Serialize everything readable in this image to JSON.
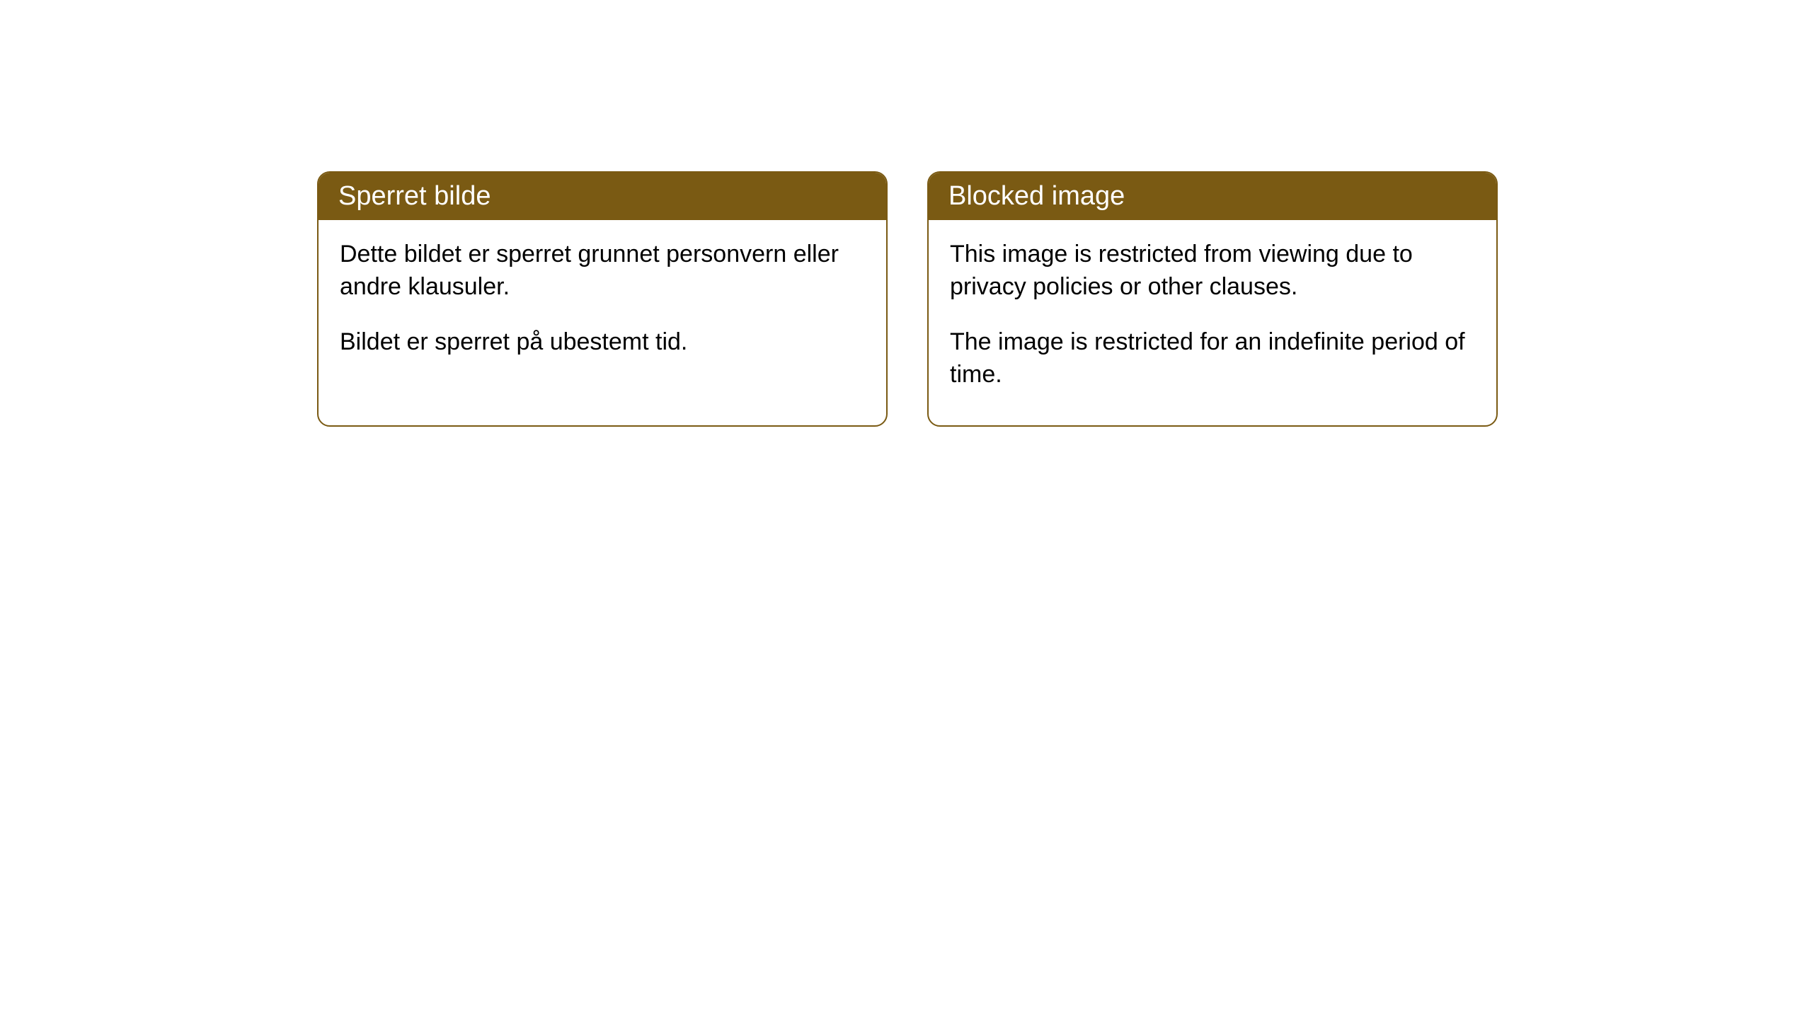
{
  "cards": [
    {
      "title": "Sperret bilde",
      "paragraph1": "Dette bildet er sperret grunnet personvern eller andre klausuler.",
      "paragraph2": "Bildet er sperret på ubestemt tid."
    },
    {
      "title": "Blocked image",
      "paragraph1": "This image is restricted from viewing due to privacy policies or other clauses.",
      "paragraph2": "The image is restricted for an indefinite period of time."
    }
  ],
  "styling": {
    "header_background": "#7a5a13",
    "header_text_color": "#ffffff",
    "border_color": "#7a5a13",
    "body_background": "#ffffff",
    "body_text_color": "#000000",
    "border_radius": "18px",
    "title_fontsize": 38,
    "body_fontsize": 34
  }
}
